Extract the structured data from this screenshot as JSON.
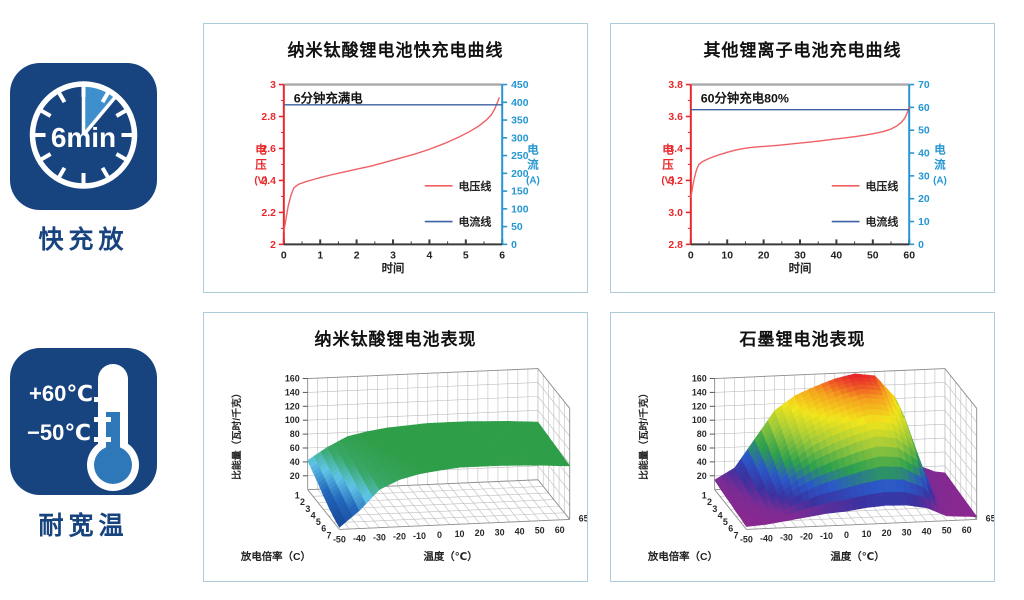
{
  "badges": [
    {
      "name": "fast-charge",
      "clock_text": "6min",
      "label": "快充放"
    },
    {
      "name": "wide-temperature",
      "temp_high": "+60℃",
      "temp_low": "−50℃",
      "label": "耐宽温"
    }
  ],
  "colors": {
    "badge_bg": "#17437f",
    "badge_accent": "#3e90cc",
    "thermo_fill": "#2e77b8",
    "panel_border": "#aecbdc",
    "voltage_red": "#ef6065",
    "current_blue": "#3b62a2",
    "axis_red": "#e8282d",
    "axis_blue": "#2596d2"
  },
  "chart_data": [
    {
      "type": "line",
      "title": "纳米钛酸锂电池快充电曲线",
      "annotation": "6分钟充满电",
      "xlabel": "时间",
      "xlim": [
        0,
        6
      ],
      "x_ticks": [
        0,
        1,
        2,
        3,
        4,
        5,
        6
      ],
      "x_minor_step": 0.5,
      "left_axis": {
        "label": "电压(V)",
        "color": "#e8282d",
        "lim": [
          2,
          3
        ],
        "tick_values": [
          2,
          2.2,
          2.4,
          2.6,
          2.8,
          3
        ],
        "tick_labels": [
          "2",
          "2.2",
          "2.4",
          "2.6",
          "2.8",
          "3"
        ],
        "minor_step": 0.1
      },
      "right_axis": {
        "label": "电流(A)",
        "color": "#2596d2",
        "lim": [
          0,
          450
        ],
        "tick_values": [
          0,
          50,
          100,
          150,
          200,
          250,
          300,
          350,
          400,
          450
        ],
        "tick_labels": [
          "0",
          "50",
          "100",
          "150",
          "200",
          "250",
          "300",
          "350",
          "400",
          "450"
        ]
      },
      "legend": [
        {
          "label": "电压线",
          "color": "#ef6065"
        },
        {
          "label": "电流线",
          "color": "#3b62a2"
        }
      ],
      "series": [
        {
          "name": "电压线",
          "axis": "left",
          "color": "#ef6065",
          "points": [
            [
              0,
              2.08
            ],
            [
              0.06,
              2.16
            ],
            [
              0.12,
              2.24
            ],
            [
              0.2,
              2.31
            ],
            [
              0.28,
              2.355
            ],
            [
              0.4,
              2.375
            ],
            [
              0.6,
              2.392
            ],
            [
              0.8,
              2.405
            ],
            [
              1,
              2.418
            ],
            [
              1.3,
              2.435
            ],
            [
              1.6,
              2.45
            ],
            [
              2,
              2.47
            ],
            [
              2.4,
              2.49
            ],
            [
              2.8,
              2.515
            ],
            [
              3.2,
              2.54
            ],
            [
              3.6,
              2.565
            ],
            [
              4,
              2.595
            ],
            [
              4.4,
              2.63
            ],
            [
              4.8,
              2.67
            ],
            [
              5.1,
              2.705
            ],
            [
              5.35,
              2.74
            ],
            [
              5.55,
              2.775
            ],
            [
              5.7,
              2.81
            ],
            [
              5.8,
              2.85
            ],
            [
              5.88,
              2.895
            ],
            [
              5.92,
              2.92
            ]
          ]
        },
        {
          "name": "电流线",
          "axis": "right",
          "color": "#3b62a2",
          "points": [
            [
              0,
              393
            ],
            [
              6,
              393
            ]
          ]
        }
      ]
    },
    {
      "type": "line",
      "title": "其他锂离子电池充电曲线",
      "annotation": "60分钟充电80%",
      "xlabel": "时间",
      "xlim": [
        0,
        60
      ],
      "x_ticks": [
        0,
        10,
        20,
        30,
        40,
        50,
        60
      ],
      "x_minor_step": 5,
      "left_axis": {
        "label": "电压(V)",
        "color": "#e8282d",
        "lim": [
          2.8,
          3.8
        ],
        "tick_values": [
          2.8,
          3.0,
          3.2,
          3.4,
          3.6,
          3.8
        ],
        "tick_labels": [
          "2.8",
          "3.0",
          "3.2",
          "3.4",
          "3.6",
          "3.8"
        ],
        "minor_step": 0.1
      },
      "right_axis": {
        "label": "电流(A)",
        "color": "#2596d2",
        "lim": [
          0,
          70
        ],
        "tick_values": [
          0,
          10,
          20,
          30,
          40,
          50,
          60,
          70
        ],
        "tick_labels": [
          "0",
          "10",
          "20",
          "30",
          "40",
          "50",
          "60",
          "70"
        ]
      },
      "legend": [
        {
          "label": "电压线",
          "color": "#ef6065"
        },
        {
          "label": "电流线",
          "color": "#3b62a2"
        }
      ],
      "series": [
        {
          "name": "电压线",
          "axis": "left",
          "color": "#ef6065",
          "points": [
            [
              0,
              3.09
            ],
            [
              0.5,
              3.16
            ],
            [
              1,
              3.22
            ],
            [
              1.6,
              3.27
            ],
            [
              2.2,
              3.3
            ],
            [
              3,
              3.315
            ],
            [
              4,
              3.327
            ],
            [
              5,
              3.337
            ],
            [
              6.5,
              3.35
            ],
            [
              8,
              3.362
            ],
            [
              10,
              3.376
            ],
            [
              12,
              3.388
            ],
            [
              14,
              3.398
            ],
            [
              16,
              3.405
            ],
            [
              18,
              3.41
            ],
            [
              21,
              3.414
            ],
            [
              24,
              3.42
            ],
            [
              27,
              3.427
            ],
            [
              30,
              3.434
            ],
            [
              33,
              3.441
            ],
            [
              36,
              3.449
            ],
            [
              39,
              3.457
            ],
            [
              42,
              3.465
            ],
            [
              45,
              3.474
            ],
            [
              48,
              3.484
            ],
            [
              51,
              3.496
            ],
            [
              53,
              3.507
            ],
            [
              55,
              3.522
            ],
            [
              56.5,
              3.54
            ],
            [
              57.8,
              3.562
            ],
            [
              58.8,
              3.59
            ],
            [
              59.5,
              3.625
            ],
            [
              60,
              3.66
            ]
          ]
        },
        {
          "name": "电流线",
          "axis": "right",
          "color": "#3b62a2",
          "points": [
            [
              0,
              59
            ],
            [
              60,
              59
            ]
          ]
        }
      ]
    },
    {
      "type": "surface",
      "title": "纳米钛酸锂电池表现",
      "xlabel": "温度（℃）",
      "ylabel": "放电倍率（C）",
      "zlabel": "比能量（瓦时/千克）",
      "x_range": [
        -50,
        65
      ],
      "x": [
        -50,
        -40,
        -30,
        -20,
        -10,
        0,
        10,
        20,
        30,
        40,
        50,
        60,
        65
      ],
      "x_tick_labels": [
        "-50",
        "-40",
        "-30",
        "-20",
        "-10",
        "0",
        "10",
        "20",
        "30",
        "40",
        "50",
        "60"
      ],
      "right_end_label": "65",
      "rates": [
        1,
        2,
        3,
        4,
        5,
        6,
        7
      ],
      "zlim": [
        0,
        160
      ],
      "z_ticks": [
        20,
        40,
        60,
        80,
        100,
        120,
        140,
        160
      ],
      "colormap": [
        [
          0,
          "#14408f"
        ],
        [
          25,
          "#2468bc"
        ],
        [
          42,
          "#5fc4e6"
        ],
        [
          58,
          "#3aa868"
        ],
        [
          78,
          "#2f9e49"
        ],
        [
          160,
          "#2b9a45"
        ]
      ],
      "z": [
        [
          42,
          60,
          74,
          80,
          84,
          86,
          88,
          88,
          88,
          87,
          86,
          84,
          83
        ],
        [
          35,
          55,
          71,
          78,
          83,
          85,
          87,
          87,
          87,
          86,
          85,
          83,
          82
        ],
        [
          28,
          50,
          68,
          76,
          81,
          84,
          86,
          86,
          86,
          85,
          84,
          82,
          81
        ],
        [
          20,
          44,
          65,
          74,
          80,
          83,
          85,
          85,
          85,
          84,
          83,
          81,
          80
        ],
        [
          13,
          38,
          62,
          72,
          78,
          81,
          84,
          84,
          84,
          83,
          82,
          80,
          79
        ],
        [
          7,
          32,
          58,
          70,
          77,
          80,
          83,
          83,
          83,
          82,
          81,
          79,
          78
        ],
        [
          3,
          26,
          55,
          68,
          75,
          79,
          82,
          82,
          82,
          81,
          80,
          78,
          77
        ]
      ]
    },
    {
      "type": "surface",
      "title": "石墨锂电池表现",
      "xlabel": "温度（℃）",
      "ylabel": "放电倍率（C）",
      "zlabel": "比能量（瓦时/千克）",
      "x_range": [
        -50,
        65
      ],
      "x": [
        -50,
        -40,
        -30,
        -20,
        -10,
        0,
        10,
        20,
        30,
        40,
        50,
        60,
        65
      ],
      "x_tick_labels": [
        "-50",
        "-40",
        "-30",
        "-20",
        "-10",
        "0",
        "10",
        "20",
        "30",
        "40",
        "50",
        "60"
      ],
      "right_end_label": "65",
      "rates": [
        1,
        2,
        3,
        4,
        5,
        6,
        7
      ],
      "zlim": [
        0,
        160
      ],
      "z_ticks": [
        20,
        40,
        60,
        80,
        100,
        120,
        140,
        160
      ],
      "colormap": [
        [
          0,
          "#90278e"
        ],
        [
          16,
          "#7c2b94"
        ],
        [
          30,
          "#3a32a0"
        ],
        [
          48,
          "#2b58c8"
        ],
        [
          68,
          "#2ca04e"
        ],
        [
          95,
          "#a0ca3a"
        ],
        [
          120,
          "#f2e51c"
        ],
        [
          140,
          "#f5a01e"
        ],
        [
          156,
          "#e8262c"
        ],
        [
          160,
          "#e02028"
        ]
      ],
      "z": [
        [
          14,
          30,
          70,
          110,
          130,
          142,
          152,
          158,
          154,
          122,
          24,
          12,
          10
        ],
        [
          12,
          26,
          62,
          100,
          122,
          136,
          146,
          152,
          148,
          116,
          20,
          10,
          9
        ],
        [
          10,
          22,
          54,
          88,
          110,
          124,
          134,
          142,
          138,
          108,
          17,
          9,
          8
        ],
        [
          9,
          18,
          44,
          74,
          96,
          110,
          120,
          128,
          124,
          96,
          14,
          8,
          7
        ],
        [
          7,
          14,
          34,
          58,
          76,
          88,
          98,
          106,
          102,
          80,
          12,
          7,
          6
        ],
        [
          6,
          10,
          22,
          38,
          50,
          58,
          66,
          72,
          70,
          54,
          10,
          6,
          5
        ],
        [
          4,
          6,
          10,
          14,
          18,
          20,
          24,
          26,
          25,
          20,
          7,
          5,
          4
        ]
      ]
    }
  ]
}
